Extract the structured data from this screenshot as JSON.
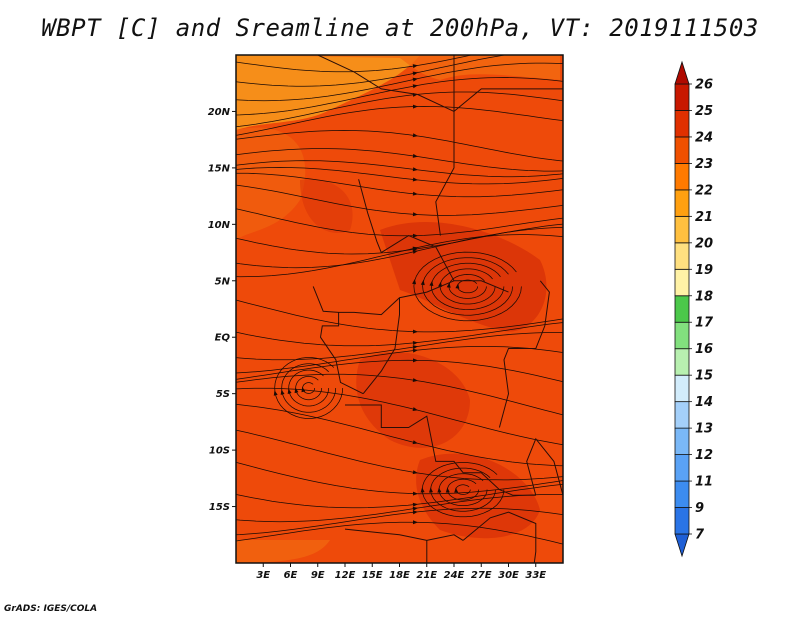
{
  "title": "WBPT [C] and Sreamline at 200hPa, VT: 2019111503",
  "credit": "GrADS: IGES/COLA",
  "map": {
    "lon_range": [
      0,
      36
    ],
    "lat_range": [
      -20,
      25
    ],
    "lat_ticks": [
      {
        "value": 20,
        "label": "20N"
      },
      {
        "value": 15,
        "label": "15N"
      },
      {
        "value": 10,
        "label": "10N"
      },
      {
        "value": 5,
        "label": "5N"
      },
      {
        "value": 0,
        "label": "EQ"
      },
      {
        "value": -5,
        "label": "5S"
      },
      {
        "value": -10,
        "label": "10S"
      },
      {
        "value": -15,
        "label": "15S"
      }
    ],
    "lon_ticks": [
      {
        "value": 3,
        "label": "3E"
      },
      {
        "value": 6,
        "label": "6E"
      },
      {
        "value": 9,
        "label": "9E"
      },
      {
        "value": 12,
        "label": "12E"
      },
      {
        "value": 15,
        "label": "15E"
      },
      {
        "value": 18,
        "label": "18E"
      },
      {
        "value": 21,
        "label": "21E"
      },
      {
        "value": 24,
        "label": "24E"
      },
      {
        "value": 27,
        "label": "27E"
      },
      {
        "value": 30,
        "label": "30E"
      },
      {
        "value": 33,
        "label": "33E"
      }
    ]
  },
  "colorbar": {
    "labels": [
      "7",
      "9",
      "11",
      "12",
      "13",
      "14",
      "15",
      "16",
      "17",
      "18",
      "19",
      "20",
      "21",
      "22",
      "23",
      "24",
      "25",
      "26"
    ],
    "colors": [
      "#1e5fd6",
      "#2a74e6",
      "#3c8cf0",
      "#5aa2f5",
      "#7ab8f7",
      "#a4d0fa",
      "#d2ecfb",
      "#b8f0b0",
      "#82e07e",
      "#4cc84a",
      "#fff2a6",
      "#ffe080",
      "#ffc040",
      "#ffa010",
      "#ff7a00",
      "#f05000",
      "#e03000",
      "#c81800",
      "#b00a00"
    ]
  },
  "colors": {
    "field_base": "#ee4a0a",
    "field_warm": "#d83208",
    "field_light": "#f26a10",
    "field_yellowish": "#f79a1c"
  }
}
